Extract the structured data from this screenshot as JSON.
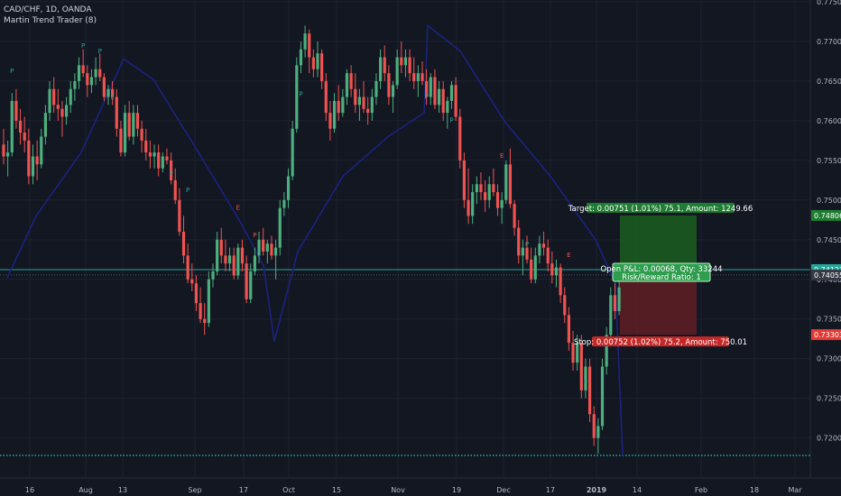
{
  "header": {
    "symbol_line": "CAD/CHF, 1D, OANDA",
    "indicator_line": "Martin Trend Trader (8)"
  },
  "colors": {
    "background": "#131722",
    "grid": "#1e2230",
    "bull": "#26a69a",
    "bull_body": "#4caf7d",
    "bear": "#ef5350",
    "trend_line": "#1a237e",
    "horizontal_line": "#26a69a",
    "target_zone": "#1b5e20",
    "stop_zone": "#5b1e24"
  },
  "chart_data": {
    "type": "candlestick",
    "symbol": "CAD/CHF",
    "timeframe": "1D",
    "source": "OANDA",
    "ylim": [
      0.7178,
      0.775
    ],
    "y_ticks": [
      "0.77500",
      "0.77000",
      "0.76500",
      "0.76000",
      "0.75500",
      "0.75000",
      "0.74500",
      "0.74000",
      "0.73500",
      "0.73000",
      "0.72500",
      "0.72000"
    ],
    "x_ticks": [
      "16",
      "Aug",
      "13",
      "Sep",
      "17",
      "Oct",
      "15",
      "Nov",
      "19",
      "Dec",
      "17",
      "2019",
      "14",
      "Feb",
      "18",
      "Mar"
    ],
    "price_tags": [
      {
        "label": "0.74806",
        "value": 0.74806,
        "kind": "target"
      },
      {
        "label": "0.74123",
        "value": 0.74123,
        "kind": "line"
      },
      {
        "label": "0.74055",
        "value": 0.74055,
        "kind": "current"
      },
      {
        "label": "0.73303",
        "value": 0.73303,
        "kind": "stop"
      }
    ],
    "position": {
      "target_label": "Target: 0.00751 (1.01%) 75.1, Amount: 1249.66",
      "stop_label": "Stop: 0.00752 (1.02%) 75.2, Amount: 750.01",
      "open_label_1": "Open P&L: 0.00068, Qty: 33244",
      "open_label_2": "Risk/Reward Ratio: 1",
      "entry": 0.74055,
      "target": 0.74806,
      "stop": 0.73303
    },
    "horizontal_line": 0.74123,
    "dotted_line": 0.7178,
    "trend_line": [
      [
        0.74,
        "Jul 11"
      ],
      [
        0.7678,
        "Aug 13"
      ],
      [
        0.7395,
        "Sep 28"
      ],
      [
        0.7318,
        "Sep 28 low"
      ],
      [
        0.7602,
        "Nov 6"
      ],
      [
        0.7718,
        "Nov 8"
      ],
      [
        0.7178,
        "Jan 10"
      ]
    ],
    "markers": [
      {
        "text": "P",
        "date_index": 2,
        "price": 0.766,
        "color": "#26a69a"
      },
      {
        "text": "P",
        "date_index": 19,
        "price": 0.7692,
        "color": "#26a69a"
      },
      {
        "text": "P",
        "date_index": 23,
        "price": 0.7685,
        "color": "#26a69a"
      },
      {
        "text": "E",
        "date_index": 26,
        "price": 0.7628,
        "color": "#26a69a"
      },
      {
        "text": "P",
        "date_index": 40,
        "price": 0.7531,
        "color": "#26a69a"
      },
      {
        "text": "P",
        "date_index": 44,
        "price": 0.751,
        "color": "#26a69a"
      },
      {
        "text": "E",
        "date_index": 56,
        "price": 0.7488,
        "color": "#ef5350"
      },
      {
        "text": "P",
        "date_index": 60,
        "price": 0.7453,
        "color": "#ef5350"
      },
      {
        "text": "P",
        "date_index": 71,
        "price": 0.7631,
        "color": "#26a69a"
      },
      {
        "text": "P",
        "date_index": 101,
        "price": 0.7628,
        "color": "#26a69a"
      },
      {
        "text": "P",
        "date_index": 107,
        "price": 0.7598,
        "color": "#26a69a"
      },
      {
        "text": "E",
        "date_index": 119,
        "price": 0.7553,
        "color": "#ef5350"
      },
      {
        "text": "P",
        "date_index": 125,
        "price": 0.7442,
        "color": "#26a69a"
      },
      {
        "text": "E",
        "date_index": 135,
        "price": 0.7428,
        "color": "#ef5350"
      },
      {
        "text": "P",
        "date_index": 139,
        "price": 0.7268,
        "color": "#26a69a"
      },
      {
        "text": "E",
        "date_index": 148,
        "price": 0.7383,
        "color": "#ef5350"
      }
    ],
    "candles": [
      [
        0.757,
        0.759,
        0.7545,
        0.7555
      ],
      [
        0.7555,
        0.7575,
        0.753,
        0.756
      ],
      [
        0.756,
        0.7635,
        0.7555,
        0.7625
      ],
      [
        0.7625,
        0.764,
        0.759,
        0.76
      ],
      [
        0.76,
        0.7615,
        0.757,
        0.7585
      ],
      [
        0.7585,
        0.7605,
        0.756,
        0.7575
      ],
      [
        0.7575,
        0.759,
        0.752,
        0.753
      ],
      [
        0.753,
        0.757,
        0.752,
        0.7555
      ],
      [
        0.7555,
        0.7575,
        0.7525,
        0.7545
      ],
      [
        0.7545,
        0.759,
        0.754,
        0.758
      ],
      [
        0.758,
        0.762,
        0.757,
        0.761
      ],
      [
        0.761,
        0.765,
        0.76,
        0.764
      ],
      [
        0.764,
        0.7655,
        0.761,
        0.762
      ],
      [
        0.762,
        0.764,
        0.76,
        0.7615
      ],
      [
        0.7615,
        0.7625,
        0.758,
        0.7605
      ],
      [
        0.7605,
        0.763,
        0.7595,
        0.762
      ],
      [
        0.762,
        0.765,
        0.761,
        0.764
      ],
      [
        0.764,
        0.766,
        0.7625,
        0.765
      ],
      [
        0.765,
        0.768,
        0.764,
        0.767
      ],
      [
        0.767,
        0.769,
        0.7655,
        0.766
      ],
      [
        0.766,
        0.767,
        0.763,
        0.7645
      ],
      [
        0.7645,
        0.7665,
        0.7635,
        0.7655
      ],
      [
        0.7655,
        0.768,
        0.7645,
        0.7665
      ],
      [
        0.7665,
        0.7685,
        0.765,
        0.7655
      ],
      [
        0.7655,
        0.766,
        0.7625,
        0.763
      ],
      [
        0.763,
        0.7645,
        0.762,
        0.764
      ],
      [
        0.764,
        0.765,
        0.762,
        0.763
      ],
      [
        0.763,
        0.764,
        0.758,
        0.759
      ],
      [
        0.759,
        0.76,
        0.7555,
        0.756
      ],
      [
        0.756,
        0.762,
        0.7555,
        0.761
      ],
      [
        0.761,
        0.7625,
        0.7575,
        0.758
      ],
      [
        0.758,
        0.762,
        0.757,
        0.761
      ],
      [
        0.761,
        0.762,
        0.758,
        0.759
      ],
      [
        0.759,
        0.76,
        0.756,
        0.7575
      ],
      [
        0.7575,
        0.759,
        0.755,
        0.756
      ],
      [
        0.756,
        0.7575,
        0.754,
        0.7555
      ],
      [
        0.7555,
        0.757,
        0.754,
        0.756
      ],
      [
        0.756,
        0.757,
        0.753,
        0.754
      ],
      [
        0.754,
        0.756,
        0.7535,
        0.7555
      ],
      [
        0.7555,
        0.7565,
        0.7545,
        0.755
      ],
      [
        0.755,
        0.756,
        0.752,
        0.7525
      ],
      [
        0.7525,
        0.754,
        0.7495,
        0.75
      ],
      [
        0.75,
        0.7515,
        0.7455,
        0.746
      ],
      [
        0.746,
        0.748,
        0.742,
        0.743
      ],
      [
        0.743,
        0.7445,
        0.7395,
        0.74
      ],
      [
        0.74,
        0.742,
        0.7385,
        0.7395
      ],
      [
        0.7395,
        0.7405,
        0.736,
        0.737
      ],
      [
        0.737,
        0.739,
        0.7345,
        0.735
      ],
      [
        0.735,
        0.737,
        0.733,
        0.7345
      ],
      [
        0.7345,
        0.741,
        0.734,
        0.74
      ],
      [
        0.74,
        0.742,
        0.739,
        0.741
      ],
      [
        0.741,
        0.746,
        0.7405,
        0.745
      ],
      [
        0.745,
        0.7465,
        0.742,
        0.743
      ],
      [
        0.743,
        0.745,
        0.741,
        0.742
      ],
      [
        0.742,
        0.744,
        0.741,
        0.743
      ],
      [
        0.743,
        0.744,
        0.74,
        0.7405
      ],
      [
        0.7405,
        0.7445,
        0.74,
        0.744
      ],
      [
        0.744,
        0.745,
        0.741,
        0.742
      ],
      [
        0.742,
        0.743,
        0.737,
        0.7375
      ],
      [
        0.7375,
        0.742,
        0.737,
        0.741
      ],
      [
        0.741,
        0.744,
        0.7405,
        0.743
      ],
      [
        0.743,
        0.746,
        0.742,
        0.745
      ],
      [
        0.745,
        0.7465,
        0.743,
        0.7435
      ],
      [
        0.7435,
        0.745,
        0.742,
        0.7445
      ],
      [
        0.7445,
        0.7455,
        0.7425,
        0.743
      ],
      [
        0.743,
        0.745,
        0.74,
        0.744
      ],
      [
        0.744,
        0.75,
        0.743,
        0.749
      ],
      [
        0.749,
        0.751,
        0.748,
        0.75
      ],
      [
        0.75,
        0.754,
        0.749,
        0.753
      ],
      [
        0.753,
        0.76,
        0.7525,
        0.759
      ],
      [
        0.759,
        0.768,
        0.7585,
        0.767
      ],
      [
        0.767,
        0.77,
        0.766,
        0.769
      ],
      [
        0.769,
        0.772,
        0.768,
        0.771
      ],
      [
        0.771,
        0.7715,
        0.766,
        0.768
      ],
      [
        0.768,
        0.769,
        0.7655,
        0.7665
      ],
      [
        0.7665,
        0.77,
        0.7655,
        0.7685
      ],
      [
        0.7685,
        0.769,
        0.764,
        0.765
      ],
      [
        0.765,
        0.766,
        0.76,
        0.761
      ],
      [
        0.761,
        0.7625,
        0.7575,
        0.759
      ],
      [
        0.759,
        0.7635,
        0.7585,
        0.7625
      ],
      [
        0.7625,
        0.7645,
        0.76,
        0.761
      ],
      [
        0.761,
        0.764,
        0.7605,
        0.763
      ],
      [
        0.763,
        0.7665,
        0.762,
        0.766
      ],
      [
        0.766,
        0.767,
        0.763,
        0.764
      ],
      [
        0.764,
        0.766,
        0.761,
        0.762
      ],
      [
        0.762,
        0.764,
        0.76,
        0.763
      ],
      [
        0.763,
        0.765,
        0.761,
        0.7615
      ],
      [
        0.7615,
        0.763,
        0.7595,
        0.761
      ],
      [
        0.761,
        0.764,
        0.76,
        0.763
      ],
      [
        0.763,
        0.766,
        0.762,
        0.765
      ],
      [
        0.765,
        0.769,
        0.764,
        0.768
      ],
      [
        0.768,
        0.7695,
        0.765,
        0.766
      ],
      [
        0.766,
        0.767,
        0.762,
        0.763
      ],
      [
        0.763,
        0.765,
        0.761,
        0.7645
      ],
      [
        0.7645,
        0.769,
        0.764,
        0.768
      ],
      [
        0.768,
        0.77,
        0.766,
        0.767
      ],
      [
        0.767,
        0.769,
        0.7655,
        0.768
      ],
      [
        0.768,
        0.769,
        0.765,
        0.766
      ],
      [
        0.766,
        0.768,
        0.764,
        0.765
      ],
      [
        0.765,
        0.767,
        0.763,
        0.766
      ],
      [
        0.766,
        0.7675,
        0.7645,
        0.765
      ],
      [
        0.765,
        0.7665,
        0.762,
        0.763
      ],
      [
        0.763,
        0.766,
        0.762,
        0.7655
      ],
      [
        0.7655,
        0.7665,
        0.7615,
        0.762
      ],
      [
        0.762,
        0.765,
        0.761,
        0.764
      ],
      [
        0.764,
        0.765,
        0.76,
        0.761
      ],
      [
        0.761,
        0.763,
        0.759,
        0.7625
      ],
      [
        0.7625,
        0.765,
        0.7615,
        0.7645
      ],
      [
        0.7645,
        0.7655,
        0.76,
        0.7605
      ],
      [
        0.7605,
        0.7615,
        0.754,
        0.755
      ],
      [
        0.755,
        0.756,
        0.749,
        0.75
      ],
      [
        0.75,
        0.754,
        0.747,
        0.748
      ],
      [
        0.748,
        0.752,
        0.747,
        0.751
      ],
      [
        0.751,
        0.753,
        0.7495,
        0.752
      ],
      [
        0.752,
        0.7535,
        0.75,
        0.751
      ],
      [
        0.751,
        0.7525,
        0.7485,
        0.75
      ],
      [
        0.75,
        0.753,
        0.749,
        0.752
      ],
      [
        0.752,
        0.754,
        0.7505,
        0.751
      ],
      [
        0.751,
        0.752,
        0.748,
        0.749
      ],
      [
        0.749,
        0.751,
        0.747,
        0.75
      ],
      [
        0.75,
        0.755,
        0.7495,
        0.7545
      ],
      [
        0.7545,
        0.7565,
        0.749,
        0.7495
      ],
      [
        0.7495,
        0.75,
        0.7455,
        0.7465
      ],
      [
        0.7465,
        0.7475,
        0.742,
        0.743
      ],
      [
        0.743,
        0.745,
        0.7405,
        0.744
      ],
      [
        0.744,
        0.7455,
        0.742,
        0.7425
      ],
      [
        0.7425,
        0.744,
        0.7395,
        0.74
      ],
      [
        0.74,
        0.744,
        0.7395,
        0.743
      ],
      [
        0.743,
        0.7455,
        0.742,
        0.7445
      ],
      [
        0.7445,
        0.746,
        0.743,
        0.744
      ],
      [
        0.744,
        0.745,
        0.741,
        0.742
      ],
      [
        0.742,
        0.7435,
        0.7395,
        0.7405
      ],
      [
        0.7405,
        0.7425,
        0.739,
        0.7415
      ],
      [
        0.7415,
        0.742,
        0.737,
        0.738
      ],
      [
        0.738,
        0.739,
        0.7345,
        0.7355
      ],
      [
        0.7355,
        0.7365,
        0.731,
        0.732
      ],
      [
        0.732,
        0.7335,
        0.7285,
        0.7295
      ],
      [
        0.7295,
        0.733,
        0.7285,
        0.732
      ],
      [
        0.732,
        0.733,
        0.725,
        0.726
      ],
      [
        0.726,
        0.73,
        0.725,
        0.729
      ],
      [
        0.729,
        0.73,
        0.722,
        0.723
      ],
      [
        0.723,
        0.724,
        0.719,
        0.72
      ],
      [
        0.72,
        0.7225,
        0.718,
        0.7215
      ],
      [
        0.7215,
        0.73,
        0.721,
        0.729
      ],
      [
        0.729,
        0.734,
        0.728,
        0.733
      ],
      [
        0.733,
        0.739,
        0.732,
        0.738
      ],
      [
        0.738,
        0.7395,
        0.735,
        0.736
      ],
      [
        0.736,
        0.74,
        0.7355,
        0.739
      ],
      [
        0.739,
        0.741,
        0.738,
        0.7405
      ]
    ]
  }
}
